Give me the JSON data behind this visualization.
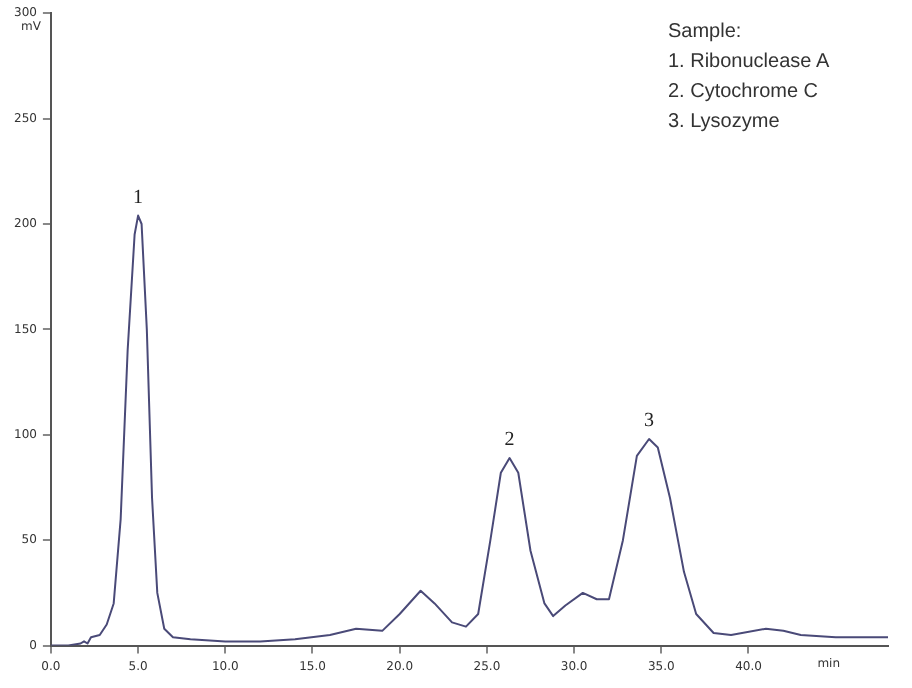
{
  "chart_data": {
    "type": "line",
    "xlabel": "min",
    "ylabel": "mV",
    "annotations": [
      "Sample:\n1. Ribonuclease A\n2. Cytochrome C\n3. Lysozyme",
      {
        "text": "1",
        "x": 5.0,
        "y": 204
      },
      {
        "text": "2",
        "x": 26.3,
        "y": 89
      },
      {
        "text": "3",
        "x": 34.3,
        "y": 98
      }
    ],
    "x": [
      0,
      1,
      1.7,
      1.9,
      2.1,
      2.3,
      2.8,
      3.2,
      3.6,
      4.0,
      4.4,
      4.8,
      5.0,
      5.2,
      5.5,
      5.8,
      6.1,
      6.5,
      7,
      8,
      10,
      12,
      14,
      16,
      17.5,
      19,
      20,
      21.2,
      22,
      23,
      23.8,
      24.5,
      25.2,
      25.8,
      26.3,
      26.8,
      27.5,
      28.3,
      28.8,
      29.5,
      30.5,
      31.3,
      32,
      32.8,
      33.6,
      34.3,
      34.8,
      35.5,
      36.3,
      37,
      38,
      39,
      41,
      42,
      43,
      45,
      48
    ],
    "series": [
      {
        "color": "#4a4a78",
        "values": [
          0,
          0,
          1,
          2,
          1,
          4,
          5,
          10,
          20,
          60,
          140,
          195,
          204,
          200,
          150,
          70,
          25,
          8,
          4,
          3,
          2,
          2,
          3,
          5,
          8,
          7,
          15,
          26,
          20,
          11,
          9,
          15,
          50,
          82,
          89,
          82,
          45,
          20,
          14,
          19,
          25,
          22,
          22,
          50,
          90,
          98,
          94,
          70,
          35,
          15,
          6,
          5,
          8,
          7,
          5,
          4,
          4
        ]
      }
    ],
    "xlim": [
      0,
      48
    ],
    "xticks": [
      {
        "value": 0,
        "label": "0.0"
      },
      {
        "value": 5,
        "label": "5.0"
      },
      {
        "value": 10,
        "label": "10.0"
      },
      {
        "value": 15,
        "label": "15.0"
      },
      {
        "value": 20,
        "label": "20.0"
      },
      {
        "value": 25,
        "label": "25.0"
      },
      {
        "value": 30,
        "label": "30.0"
      },
      {
        "value": 35,
        "label": "35.0"
      },
      {
        "value": 40,
        "label": "40.0"
      }
    ],
    "ylim": [
      0,
      300
    ],
    "yticks": [
      0,
      50,
      100,
      150,
      200,
      250,
      300
    ],
    "grid": false,
    "legend": false,
    "marker": "none",
    "line_style": "solid"
  }
}
